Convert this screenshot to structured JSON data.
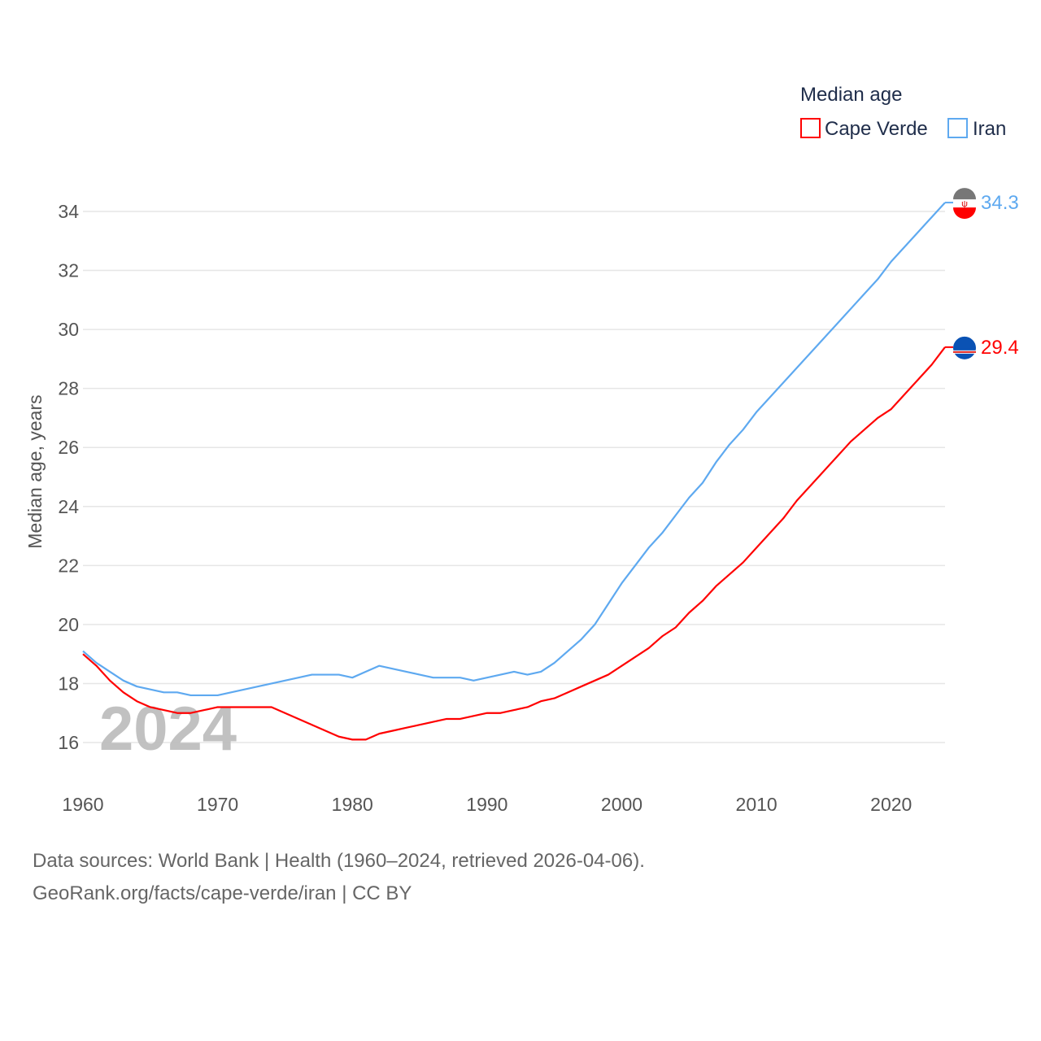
{
  "chart_data": {
    "type": "line",
    "title": "",
    "legend_title": "Median age",
    "legend_position": "top-right",
    "xlabel": "",
    "ylabel": "Median age, years",
    "xlim": [
      1960,
      2024
    ],
    "ylim": [
      15,
      34.5
    ],
    "x_ticks": [
      "1960",
      "1970",
      "1980",
      "1990",
      "2000",
      "2010",
      "2020"
    ],
    "y_ticks": [
      "16",
      "18",
      "20",
      "22",
      "24",
      "26",
      "28",
      "30",
      "32",
      "34"
    ],
    "year_watermark": "2024",
    "x": [
      1960,
      1961,
      1962,
      1963,
      1964,
      1965,
      1966,
      1967,
      1968,
      1969,
      1970,
      1971,
      1972,
      1973,
      1974,
      1975,
      1976,
      1977,
      1978,
      1979,
      1980,
      1981,
      1982,
      1983,
      1984,
      1985,
      1986,
      1987,
      1988,
      1989,
      1990,
      1991,
      1992,
      1993,
      1994,
      1995,
      1996,
      1997,
      1998,
      1999,
      2000,
      2001,
      2002,
      2003,
      2004,
      2005,
      2006,
      2007,
      2008,
      2009,
      2010,
      2011,
      2012,
      2013,
      2014,
      2015,
      2016,
      2017,
      2018,
      2019,
      2020,
      2021,
      2022,
      2023,
      2024
    ],
    "series": [
      {
        "name": "Cape Verde",
        "color": "#ff0000",
        "end_label": "29.4",
        "values": [
          19.0,
          18.6,
          18.1,
          17.7,
          17.4,
          17.2,
          17.1,
          17.0,
          17.0,
          17.1,
          17.2,
          17.2,
          17.2,
          17.2,
          17.2,
          17.0,
          16.8,
          16.6,
          16.4,
          16.2,
          16.1,
          16.1,
          16.3,
          16.4,
          16.5,
          16.6,
          16.7,
          16.8,
          16.8,
          16.9,
          17.0,
          17.0,
          17.1,
          17.2,
          17.4,
          17.5,
          17.7,
          17.9,
          18.1,
          18.3,
          18.6,
          18.9,
          19.2,
          19.6,
          19.9,
          20.4,
          20.8,
          21.3,
          21.7,
          22.1,
          22.6,
          23.1,
          23.6,
          24.2,
          24.7,
          25.2,
          25.7,
          26.2,
          26.6,
          27.0,
          27.3,
          27.8,
          28.3,
          28.8,
          29.4
        ]
      },
      {
        "name": "Iran",
        "color": "#5ea9f0",
        "end_label": "34.3",
        "values": [
          19.1,
          18.7,
          18.4,
          18.1,
          17.9,
          17.8,
          17.7,
          17.7,
          17.6,
          17.6,
          17.6,
          17.7,
          17.8,
          17.9,
          18.0,
          18.1,
          18.2,
          18.3,
          18.3,
          18.3,
          18.2,
          18.4,
          18.6,
          18.5,
          18.4,
          18.3,
          18.2,
          18.2,
          18.2,
          18.1,
          18.2,
          18.3,
          18.4,
          18.3,
          18.4,
          18.7,
          19.1,
          19.5,
          20.0,
          20.7,
          21.4,
          22.0,
          22.6,
          23.1,
          23.7,
          24.3,
          24.8,
          25.5,
          26.1,
          26.6,
          27.2,
          27.7,
          28.2,
          28.7,
          29.2,
          29.7,
          30.2,
          30.7,
          31.2,
          31.7,
          32.3,
          32.8,
          33.3,
          33.8,
          34.3
        ]
      }
    ]
  },
  "footer": {
    "line1": "Data sources: World Bank | Health (1960–2024, retrieved 2026-04-06).",
    "line2": "GeoRank.org/facts/cape-verde/iran | CC BY"
  }
}
